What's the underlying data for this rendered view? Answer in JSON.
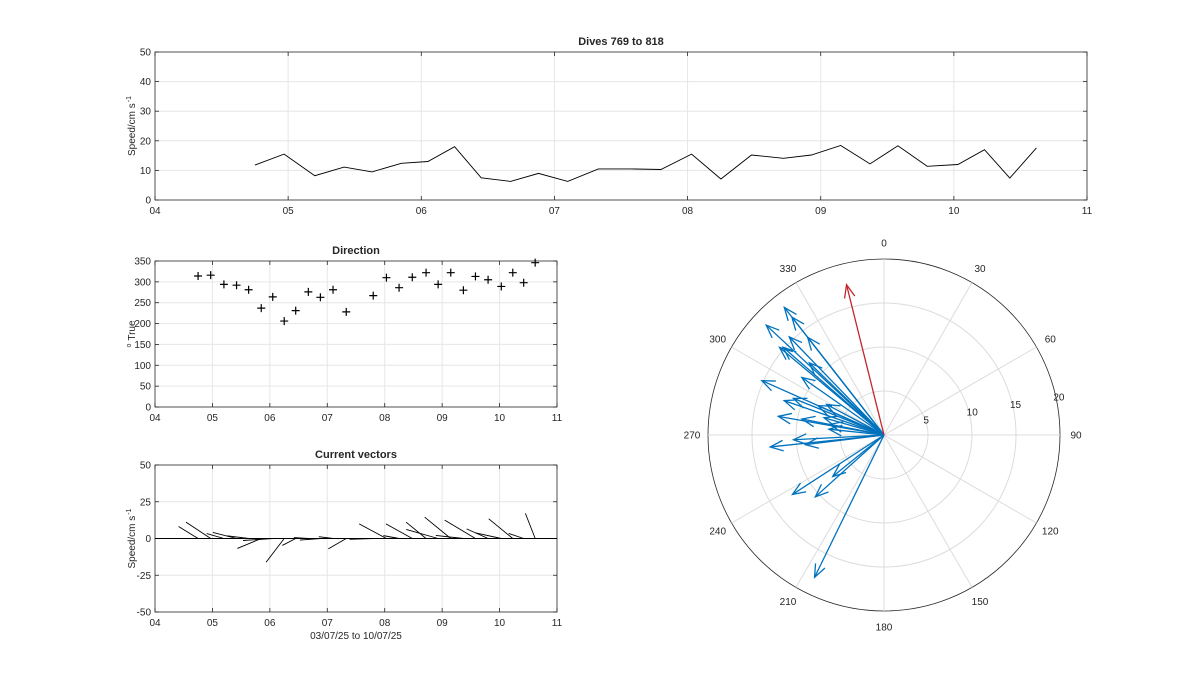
{
  "chart_data": [
    {
      "id": "speed",
      "type": "line",
      "title": "Dives 769 to 818",
      "ylabel": "Speed/cm s",
      "ylabel_exp": "-1",
      "xlim": [
        4,
        11
      ],
      "ylim": [
        0,
        50
      ],
      "xticks": [
        4,
        5,
        6,
        7,
        8,
        9,
        10,
        11
      ],
      "xtick_labels": [
        "04",
        "05",
        "06",
        "07",
        "08",
        "09",
        "10",
        "11"
      ],
      "yticks": [
        0,
        10,
        20,
        30,
        40,
        50
      ],
      "ytick_labels": [
        "0",
        "10",
        "20",
        "30",
        "40",
        "50"
      ],
      "grid": true,
      "series": [
        {
          "color": "#000000",
          "x": [
            4.75,
            4.97,
            5.2,
            5.42,
            5.63,
            5.85,
            6.05,
            6.25,
            6.45,
            6.67,
            6.88,
            7.1,
            7.33,
            7.57,
            7.8,
            8.03,
            8.25,
            8.48,
            8.72,
            8.93,
            9.15,
            9.37,
            9.58,
            9.8,
            10.03,
            10.23,
            10.42,
            10.62
          ],
          "y": [
            11.8,
            15.5,
            8.2,
            11.1,
            9.5,
            12.4,
            13,
            18,
            7.5,
            6.3,
            9,
            6.3,
            10.5,
            10.5,
            10.3,
            15.5,
            7.1,
            15.2,
            14.1,
            15.2,
            18.4,
            12.2,
            18.3,
            11.4,
            12,
            17,
            7.4,
            17.6
          ]
        }
      ]
    },
    {
      "id": "direction",
      "type": "scatter",
      "title": "Direction",
      "ylabel": "True",
      "ylabel_prefix": "o",
      "xlim": [
        4,
        11
      ],
      "ylim": [
        0,
        350
      ],
      "xticks": [
        4,
        5,
        6,
        7,
        8,
        9,
        10,
        11
      ],
      "xtick_labels": [
        "04",
        "05",
        "06",
        "07",
        "08",
        "09",
        "10",
        "11"
      ],
      "yticks": [
        0,
        50,
        100,
        150,
        200,
        250,
        300,
        350
      ],
      "ytick_labels": [
        "0",
        "50",
        "100",
        "150",
        "200",
        "250",
        "300",
        "350"
      ],
      "grid": true,
      "marker": "+",
      "series": [
        {
          "color": "#000000",
          "x": [
            4.75,
            4.97,
            5.2,
            5.42,
            5.63,
            5.85,
            6.05,
            6.25,
            6.45,
            6.67,
            6.88,
            7.1,
            7.33,
            7.8,
            8.03,
            8.25,
            8.48,
            8.72,
            8.93,
            9.15,
            9.37,
            9.58,
            9.8,
            10.03,
            10.23,
            10.42,
            10.62
          ],
          "y": [
            314,
            316,
            294,
            292,
            281,
            237,
            264,
            206,
            231,
            276,
            263,
            281,
            228,
            267,
            310,
            286,
            311,
            322,
            294,
            322,
            280,
            313,
            305,
            289,
            322,
            298,
            346
          ]
        }
      ]
    },
    {
      "id": "vectors",
      "type": "line",
      "title": "Current vectors",
      "ylabel": "Speed/cm s",
      "ylabel_exp": "-1",
      "xlabel": "03/07/25 to 10/07/25",
      "xlim": [
        4,
        11
      ],
      "ylim": [
        -50,
        50
      ],
      "xticks": [
        4,
        5,
        6,
        7,
        8,
        9,
        10,
        11
      ],
      "xtick_labels": [
        "04",
        "05",
        "06",
        "07",
        "08",
        "09",
        "10",
        "11"
      ],
      "yticks": [
        -50,
        -25,
        0,
        25,
        50
      ],
      "ytick_labels": [
        "-50",
        "-25",
        "0",
        "25",
        "50"
      ],
      "grid": true,
      "vector_scale_days_per_cms": 0.04,
      "series": [
        {
          "color": "#000000",
          "x": [
            4.75,
            4.97,
            5.2,
            5.42,
            5.63,
            5.85,
            6.05,
            6.25,
            6.45,
            6.67,
            6.88,
            7.1,
            7.33,
            7.8,
            8.03,
            8.25,
            8.48,
            8.72,
            8.93,
            9.15,
            9.37,
            9.58,
            9.8,
            10.03,
            10.23,
            10.42,
            10.62
          ],
          "speed": [
            11.8,
            15.5,
            8.2,
            11.1,
            9.5,
            12.4,
            13,
            18,
            7.5,
            6.3,
            9,
            6.3,
            10.5,
            10.3,
            15.5,
            7.1,
            15.2,
            14.1,
            15.2,
            18.4,
            12.2,
            18.3,
            11.4,
            12,
            17,
            7.4,
            17.6
          ],
          "direction_deg": [
            314,
            316,
            294,
            292,
            281,
            237,
            264,
            206,
            231,
            276,
            263,
            281,
            228,
            267,
            310,
            286,
            311,
            322,
            294,
            322,
            280,
            313,
            305,
            289,
            322,
            298,
            346
          ]
        }
      ]
    },
    {
      "id": "polar",
      "type": "polar",
      "angle_labels": [
        "0",
        "30",
        "60",
        "90",
        "120",
        "150",
        "180",
        "210",
        "240",
        "270",
        "300",
        "330"
      ],
      "radial_ticks": [
        5,
        10,
        15,
        20
      ],
      "radial_tick_labels": [
        "5",
        "10",
        "15",
        "20"
      ],
      "rlim": [
        0,
        20
      ],
      "clockwise_from_north": true,
      "grid": true,
      "series": [
        {
          "color": "#0072BD",
          "direction_deg": [
            314,
            316,
            294,
            292,
            281,
            237,
            264,
            206,
            231,
            276,
            263,
            281,
            228,
            267,
            310,
            286,
            311,
            322,
            294,
            322,
            280,
            313,
            305,
            289,
            322,
            298
          ],
          "speed": [
            11.8,
            15.5,
            8.2,
            11.1,
            9.5,
            12.4,
            13,
            18,
            7.5,
            6.3,
            9,
            6.3,
            10.5,
            10.3,
            15.5,
            7.1,
            15.2,
            14.1,
            15.2,
            18.4,
            12.2,
            18.3,
            11.4,
            12,
            17,
            7.4
          ]
        },
        {
          "color": "#C1272D",
          "direction_deg": [
            346
          ],
          "speed": [
            17.6
          ]
        }
      ]
    }
  ]
}
